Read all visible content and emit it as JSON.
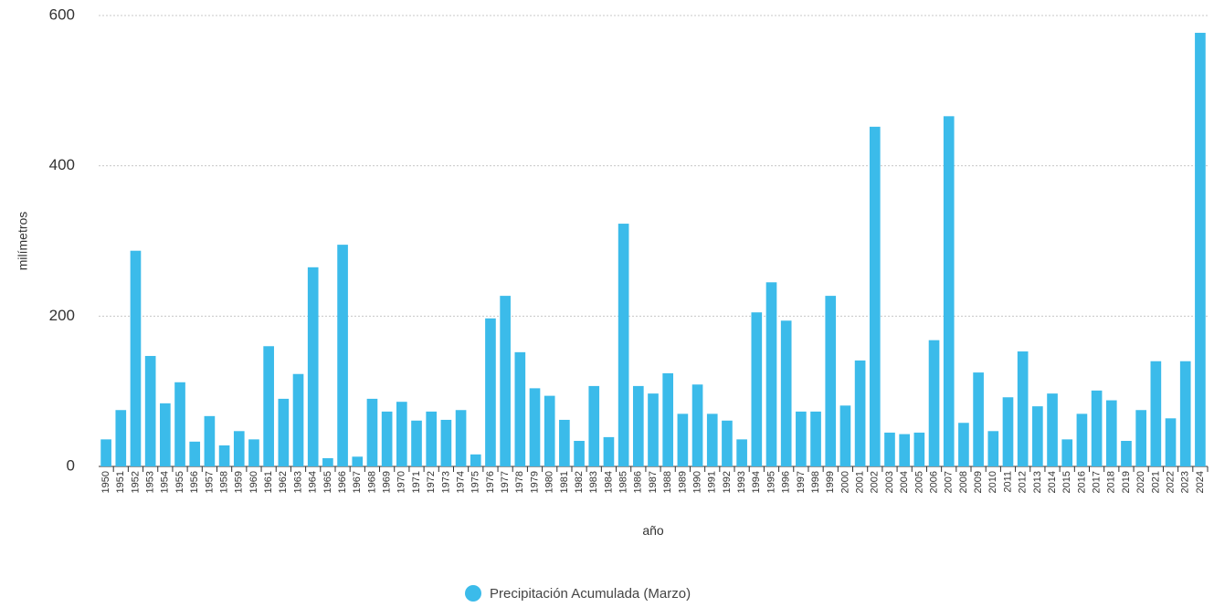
{
  "chart_data": {
    "type": "bar",
    "x_label": "año",
    "y_label": "milímetros",
    "categories": [
      "1950",
      "1951",
      "1952",
      "1953",
      "1954",
      "1955",
      "1956",
      "1957",
      "1958",
      "1959",
      "1960",
      "1961",
      "1962",
      "1963",
      "1964",
      "1965",
      "1966",
      "1967",
      "1968",
      "1969",
      "1970",
      "1971",
      "1972",
      "1973",
      "1974",
      "1975",
      "1976",
      "1977",
      "1978",
      "1979",
      "1980",
      "1981",
      "1982",
      "1983",
      "1984",
      "1985",
      "1986",
      "1987",
      "1988",
      "1989",
      "1990",
      "1991",
      "1992",
      "1993",
      "1994",
      "1995",
      "1996",
      "1997",
      "1998",
      "1999",
      "2000",
      "2001",
      "2002",
      "2003",
      "2004",
      "2005",
      "2006",
      "2007",
      "2008",
      "2009",
      "2010",
      "2011",
      "2012",
      "2013",
      "2014",
      "2015",
      "2016",
      "2017",
      "2018",
      "2019",
      "2020",
      "2021",
      "2022",
      "2023",
      "2024"
    ],
    "series": [
      {
        "name": "Precipitación Acumulada (Marzo)",
        "color": "#3bbbea",
        "values": [
          36,
          75,
          287,
          147,
          84,
          112,
          33,
          67,
          28,
          47,
          36,
          160,
          90,
          123,
          265,
          11,
          295,
          13,
          90,
          73,
          86,
          61,
          73,
          62,
          75,
          16,
          197,
          227,
          152,
          104,
          94,
          62,
          34,
          107,
          39,
          323,
          107,
          97,
          124,
          70,
          109,
          70,
          61,
          36,
          205,
          245,
          194,
          73,
          73,
          227,
          81,
          141,
          452,
          45,
          43,
          45,
          168,
          466,
          58,
          125,
          47,
          92,
          153,
          80,
          97,
          36,
          70,
          101,
          88,
          34,
          75,
          140,
          64,
          140,
          577
        ]
      }
    ],
    "ylim": [
      0,
      600
    ],
    "yticks": [
      0,
      200,
      400,
      600
    ],
    "grid": true
  }
}
